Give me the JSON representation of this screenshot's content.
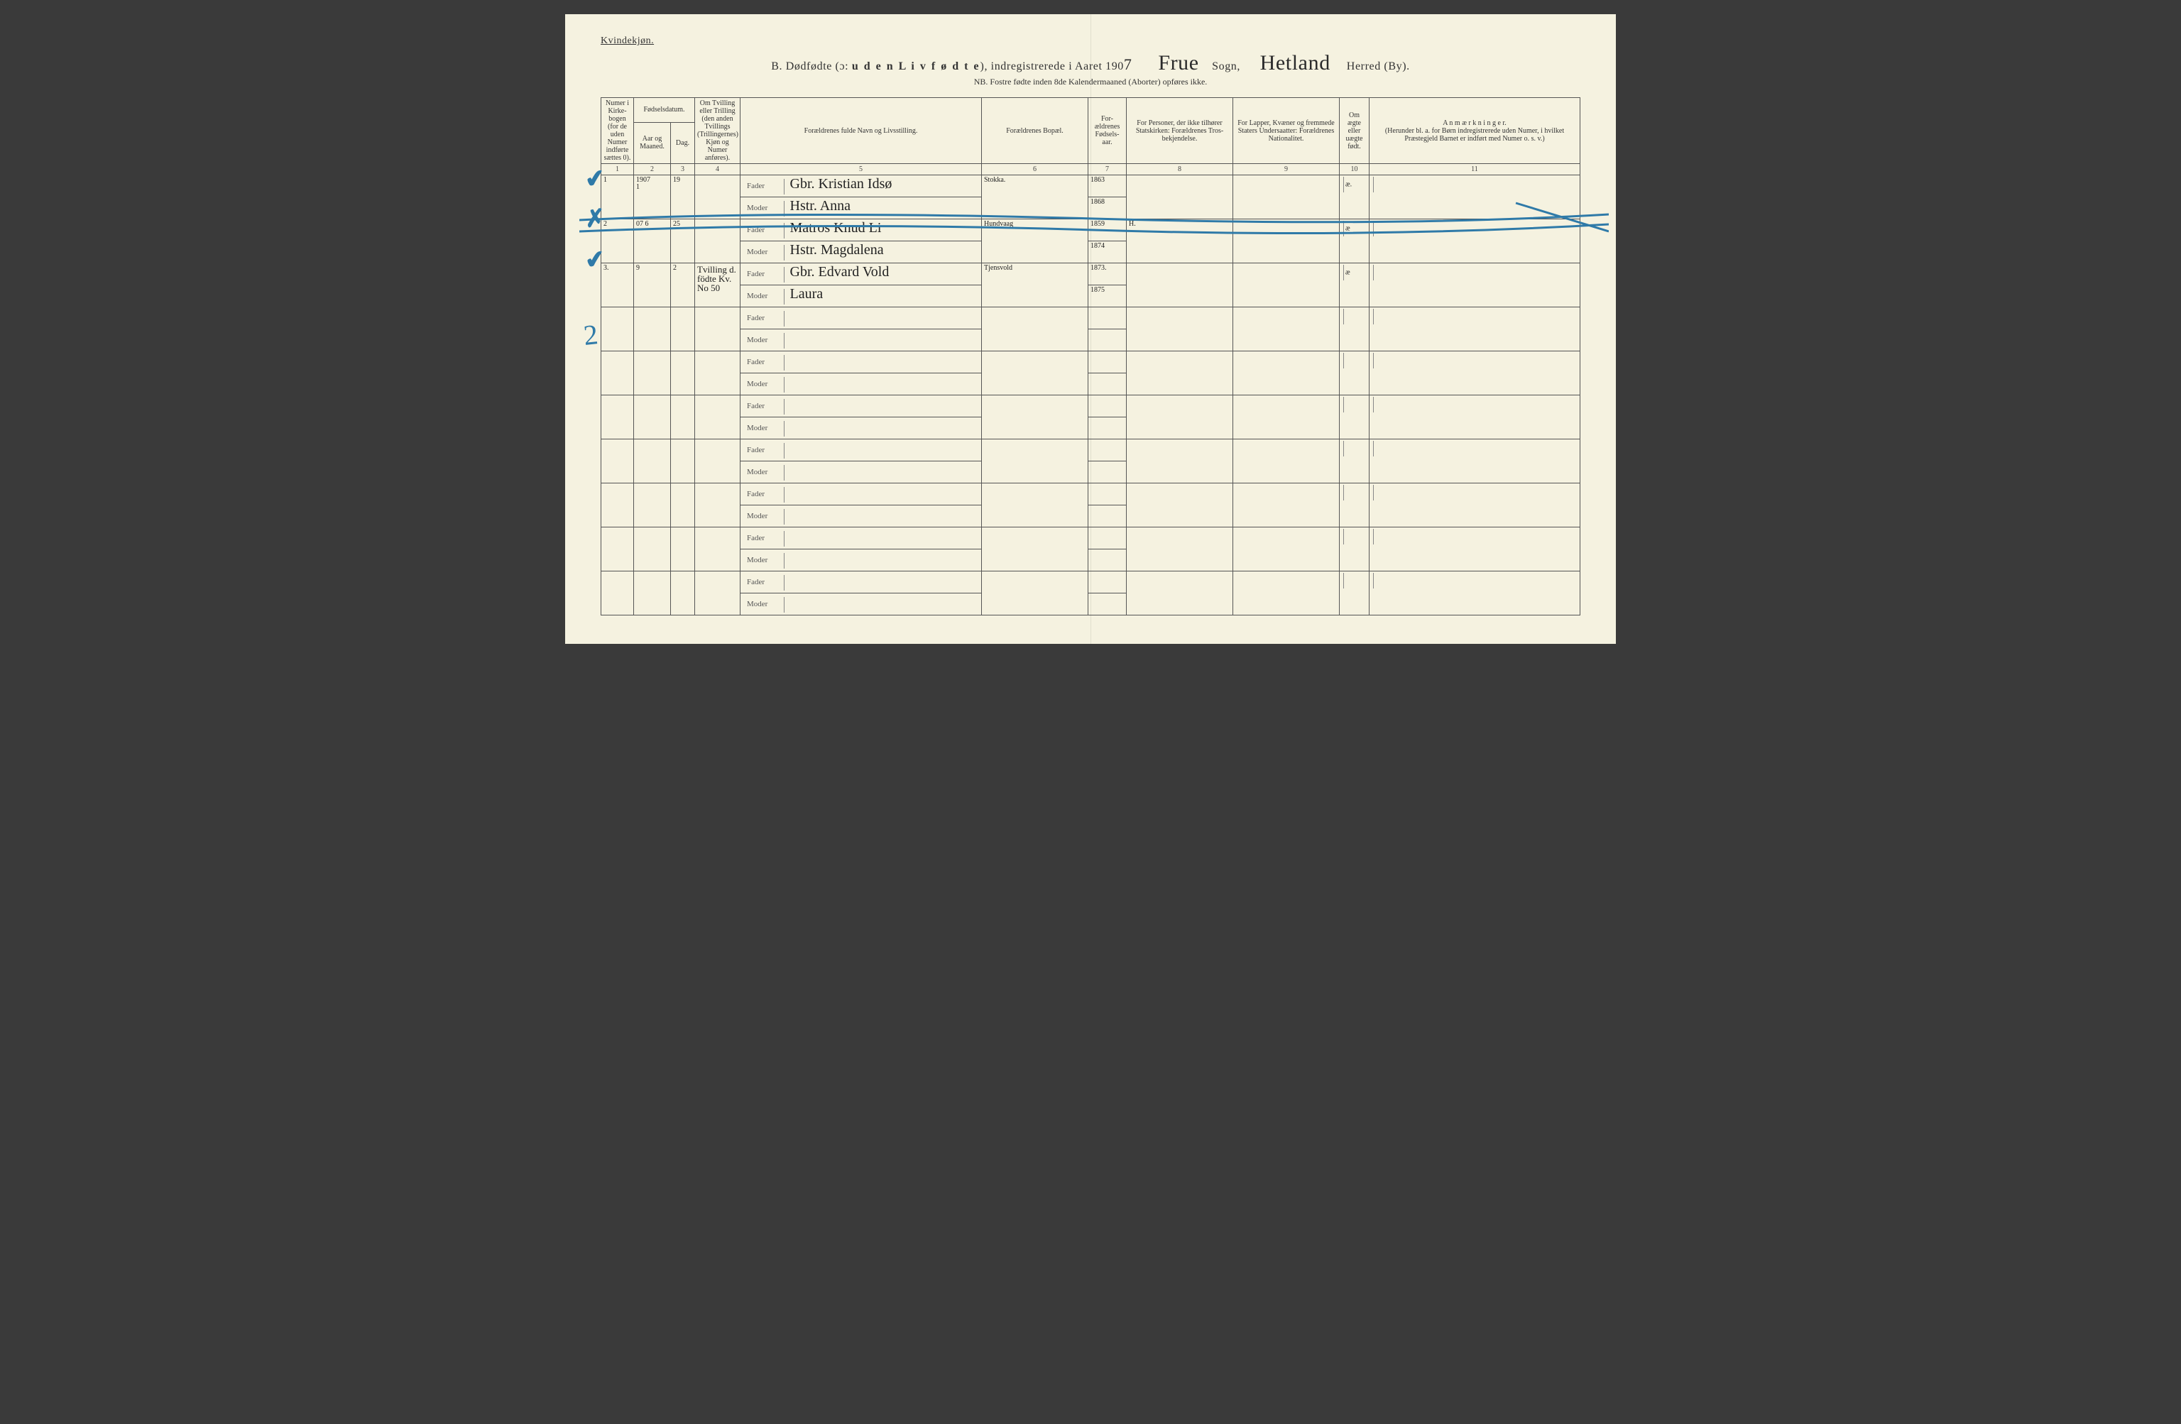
{
  "header": {
    "corner": "Kvindekjøn.",
    "title_prefix": "B.  Dødfødte (ɔ:",
    "title_bold": "u d e n   L i v   f ø d t e",
    "title_suffix": "), indregistrerede i Aaret 190",
    "year_digit": "7",
    "sogn_value": "Frue",
    "sogn_label": "Sogn,",
    "herred_value": "Hetland",
    "herred_label": "Herred (By).",
    "nb": "NB.  Fostre fødte inden 8de Kalendermaaned (Aborter) opføres ikke."
  },
  "columns": {
    "c1": "Numer i Kirke-bogen (for de uden Numer indførte sættes 0).",
    "c2_top": "Fødselsdatum.",
    "c2a": "Aar og Maaned.",
    "c2b": "Dag.",
    "c4": "Om Tvilling eller Trilling (den anden Tvillings (Trillingernes) Kjøn og Numer anføres).",
    "c5": "Forældrenes fulde Navn og Livsstilling.",
    "c6": "Forældrenes Bopæl.",
    "c7": "For-ældrenes Fødsels-aar.",
    "c8": "For Personer, der ikke tilhører Statskirken: Forældrenes Tros-bekjendelse.",
    "c9": "For Lapper, Kvæner og fremmede Staters Undersaatter: Forældrenes Nationalitet.",
    "c10": "Om ægte eller uægte født.",
    "c11_a": "A n m æ r k n i n g e r.",
    "c11_b": "(Herunder bl. a. for Børn indregistrerede uden Numer, i hvilket Præstegjeld Barnet er indført med Numer o. s. v.)"
  },
  "colnums": [
    "1",
    "2",
    "3",
    "4",
    "5",
    "6",
    "7",
    "8",
    "9",
    "10",
    "11"
  ],
  "parent_labels": {
    "fader": "Fader",
    "moder": "Moder"
  },
  "rows": [
    {
      "num": "1",
      "aar_maaned": "1907\n1",
      "dag": "19",
      "tvilling": "",
      "fader": "Gbr. Kristian Idsø",
      "moder": "Hstr. Anna",
      "bopel": "Stokka.",
      "far_aar": "1863",
      "mor_aar": "1868",
      "tros": "",
      "nat": "",
      "aegte": "æ.",
      "anm": "",
      "check_color": "#2f7aa8",
      "struck": false
    },
    {
      "num": "2",
      "aar_maaned": "07 6",
      "dag": "25",
      "tvilling": "",
      "fader": "Matros Knud Li",
      "moder": "Hstr. Magdalena",
      "bopel": "Hundvaag",
      "far_aar": "1859",
      "mor_aar": "1874",
      "tros": "H.",
      "nat": "",
      "aegte": "æ",
      "anm": "",
      "check_color": "#2f7aa8",
      "struck": true
    },
    {
      "num": "3.",
      "aar_maaned": "9",
      "dag": "2",
      "tvilling": "Tvilling d. födte Kv. No 50",
      "fader": "Gbr. Edvard Vold",
      "moder": "Laura",
      "bopel": "Tjensvold",
      "far_aar": "1873.",
      "mor_aar": "1875",
      "tros": "",
      "nat": "",
      "aegte": "æ",
      "anm": "",
      "check_color": "#2f7aa8",
      "struck": false
    }
  ],
  "empty_row_count": 7,
  "annotations": {
    "margin_two": "2",
    "strike_color": "#2f7aa8"
  },
  "style": {
    "paper_bg": "#f5f2e0",
    "ink": "#2a2a2a",
    "rule": "#555555"
  }
}
